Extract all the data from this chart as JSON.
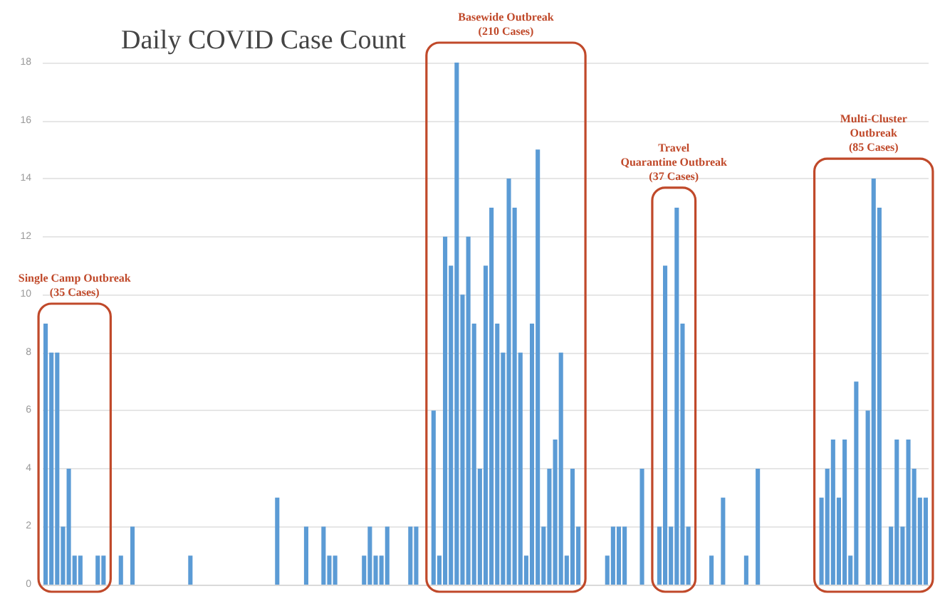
{
  "chart_data": {
    "type": "bar",
    "title": "Daily COVID Case Count",
    "categories": [
      null,
      null,
      null,
      null,
      null,
      null,
      null,
      null,
      null,
      null,
      null,
      null,
      null,
      null,
      null,
      null,
      null,
      null,
      null,
      null,
      null,
      null,
      null,
      null,
      null,
      null,
      null,
      null,
      null,
      null,
      null,
      null,
      null,
      null,
      null,
      null,
      null,
      null,
      null,
      null,
      null,
      null,
      null,
      null,
      null,
      null,
      null,
      null,
      null,
      null,
      null,
      null,
      null,
      null,
      null,
      null,
      null,
      null,
      null,
      null,
      null,
      null,
      null,
      null,
      null,
      null,
      null,
      null,
      null,
      null,
      null,
      null,
      null,
      null,
      null,
      null,
      null,
      null,
      null,
      null,
      null,
      null,
      null,
      null,
      null,
      null,
      null,
      null,
      null,
      null,
      null,
      null,
      null,
      null,
      null,
      null,
      null,
      null,
      null,
      null,
      null,
      null,
      null,
      null,
      null,
      null,
      null,
      null,
      null,
      null,
      null,
      null,
      null,
      null,
      null,
      null,
      null,
      null,
      null,
      null,
      null,
      null,
      null,
      null,
      null,
      null,
      null,
      null,
      null,
      null,
      null,
      null,
      null,
      null,
      null,
      null,
      null,
      null,
      null,
      null,
      null,
      null,
      null,
      null,
      null,
      null,
      null,
      null,
      null,
      null,
      null,
      null,
      null
    ],
    "values": [
      9,
      8,
      8,
      2,
      4,
      1,
      1,
      0,
      0,
      1,
      1,
      0,
      0,
      1,
      0,
      2,
      0,
      0,
      0,
      0,
      0,
      0,
      0,
      0,
      0,
      1,
      0,
      0,
      0,
      0,
      0,
      0,
      0,
      0,
      0,
      0,
      0,
      0,
      0,
      0,
      3,
      0,
      0,
      0,
      0,
      2,
      0,
      0,
      2,
      1,
      1,
      0,
      0,
      0,
      0,
      1,
      2,
      1,
      1,
      2,
      0,
      0,
      0,
      2,
      2,
      0,
      0,
      6,
      1,
      12,
      11,
      18,
      10,
      12,
      9,
      4,
      11,
      13,
      9,
      8,
      14,
      13,
      8,
      1,
      9,
      15,
      2,
      4,
      5,
      8,
      1,
      4,
      2,
      0,
      0,
      0,
      0,
      1,
      2,
      2,
      2,
      0,
      0,
      4,
      0,
      0,
      2,
      11,
      2,
      13,
      9,
      2,
      0,
      0,
      0,
      1,
      0,
      3,
      0,
      0,
      0,
      1,
      0,
      4,
      0,
      0,
      0,
      0,
      0,
      0,
      0,
      0,
      0,
      0,
      3,
      4,
      5,
      3,
      5,
      1,
      7,
      0,
      6,
      14,
      13,
      0,
      2,
      5,
      2,
      5,
      4,
      3,
      3
    ],
    "color": "#5b9bd5",
    "ylim": [
      0,
      18
    ],
    "yticks": [
      0,
      2,
      4,
      6,
      8,
      10,
      12,
      14,
      16,
      18
    ],
    "grid": "y",
    "annotations": [
      "Single Camp Outbreak\n(35 Cases)",
      "Basewide Outbreak\n(210 Cases)",
      "Travel\nQuarantine Outbreak\n(37 Cases)",
      "Multi-Cluster\nOutbreak\n(85 Cases)"
    ]
  }
}
